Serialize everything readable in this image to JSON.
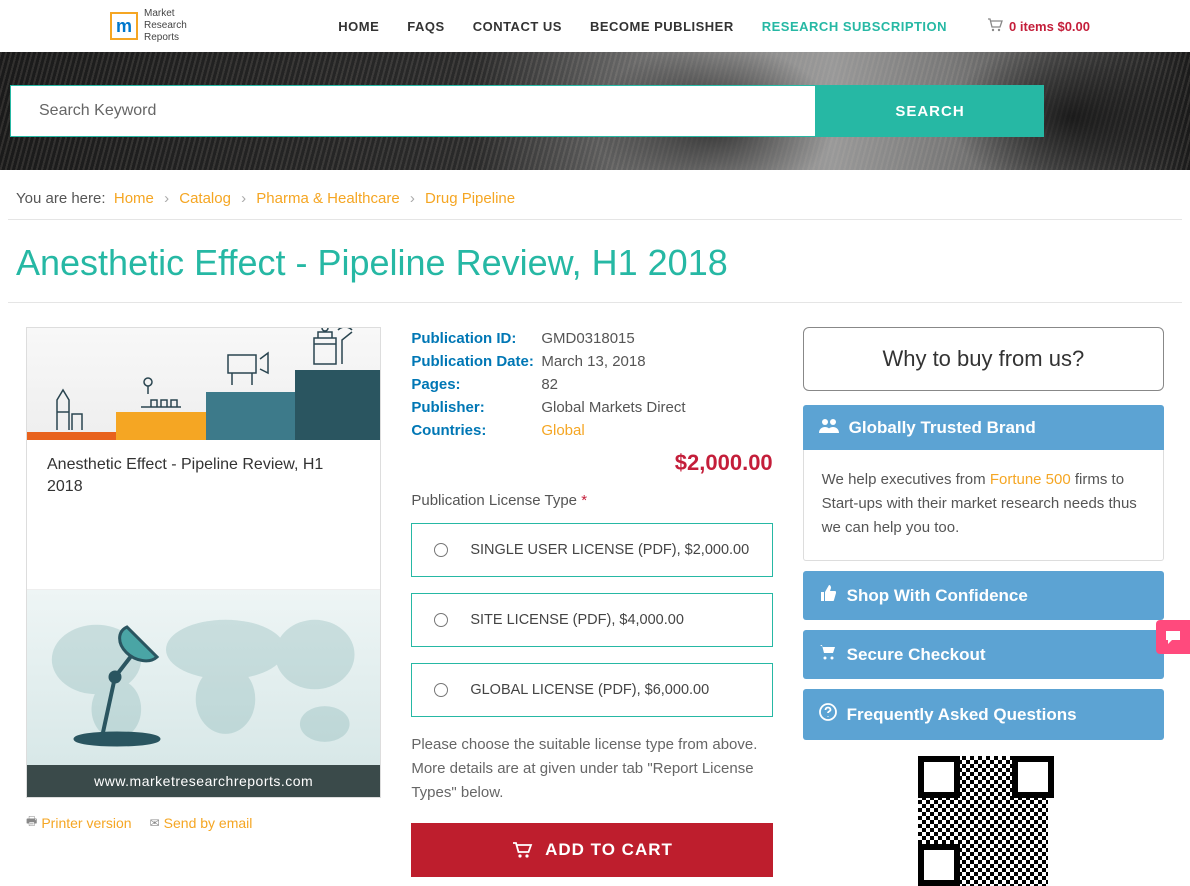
{
  "header": {
    "logo_text": "Market\nResearch\nReports",
    "nav": [
      {
        "label": "HOME",
        "active": false
      },
      {
        "label": "FAQS",
        "active": false
      },
      {
        "label": "CONTACT US",
        "active": false
      },
      {
        "label": "BECOME PUBLISHER",
        "active": false
      },
      {
        "label": "RESEARCH SUBSCRIPTION",
        "active": true
      }
    ],
    "cart_text": "0 items $0.00"
  },
  "search": {
    "placeholder": "Search Keyword",
    "button": "SEARCH"
  },
  "breadcrumb": {
    "prefix": "You are here:",
    "items": [
      "Home",
      "Catalog",
      "Pharma & Healthcare",
      "Drug Pipeline"
    ]
  },
  "title": "Anesthetic Effect - Pipeline Review, H1 2018",
  "product": {
    "image_title": "Anesthetic Effect - Pipeline Review, H1 2018",
    "image_footer": "www.marketresearchreports.com",
    "printer_link": "Printer version",
    "email_link": "Send by email"
  },
  "details": {
    "rows": [
      {
        "label": "Publication ID:",
        "value": "GMD0318015",
        "link": false
      },
      {
        "label": "Publication Date:",
        "value": "March 13, 2018",
        "link": false
      },
      {
        "label": "Pages:",
        "value": "82",
        "link": false
      },
      {
        "label": "Publisher:",
        "value": "Global Markets Direct",
        "link": false
      },
      {
        "label": "Countries:",
        "value": "Global",
        "link": true
      }
    ],
    "price": "$2,000.00",
    "license_label": "Publication License Type",
    "licenses": [
      "SINGLE USER LICENSE (PDF), $2,000.00",
      "SITE LICENSE (PDF), $4,000.00",
      "GLOBAL LICENSE (PDF), $6,000.00"
    ],
    "license_help": "Please choose the suitable license type from above. More details are at given under tab \"Report License Types\" below.",
    "add_to_cart": "ADD TO CART"
  },
  "sidebar": {
    "why_title": "Why to buy from us?",
    "trusted_title": "Globally Trusted Brand",
    "trusted_body_pre": "We help executives from ",
    "trusted_body_link": "Fortune 500",
    "trusted_body_post": " firms to Start-ups with their market research needs thus we can help you too.",
    "items": [
      {
        "icon": "thumb",
        "label": "Shop With Confidence"
      },
      {
        "icon": "cart",
        "label": "Secure Checkout"
      },
      {
        "icon": "help",
        "label": "Frequently Asked Questions"
      }
    ]
  },
  "colors": {
    "teal": "#26b8a4",
    "orange": "#f5a623",
    "red": "#c41e3a",
    "blue": "#5ca3d3",
    "darkred": "#be1e2d"
  }
}
